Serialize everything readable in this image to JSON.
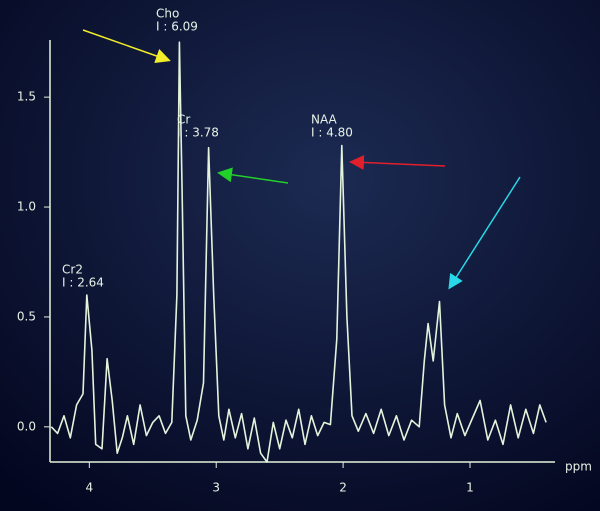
{
  "chart_data": {
    "type": "line",
    "x_label": "ppm",
    "annotations": [
      {
        "name": "Cho",
        "integral": "I : 6.09"
      },
      {
        "name": "Cr",
        "integral": "I : 3.78"
      },
      {
        "name": "NAA",
        "integral": "I : 4.80"
      },
      {
        "name": "Cr2",
        "integral": "I : 2.64"
      }
    ],
    "xlim": [
      4.31,
      0.33
    ],
    "xticks": [
      4,
      3,
      2,
      1
    ],
    "ylim": [
      -0.16,
      1.76
    ],
    "yticks": [
      {
        "value": 0,
        "label": "0.0"
      },
      0.5,
      {
        "value": 1,
        "label": "1.0"
      },
      1.5
    ],
    "series": [
      {
        "color": "#e4f4dc",
        "x": [
          4.3,
          4.25,
          4.2,
          4.15,
          4.1,
          4.05,
          4.02,
          3.98,
          3.95,
          3.9,
          3.86,
          3.82,
          3.78,
          3.74,
          3.7,
          3.65,
          3.6,
          3.55,
          3.5,
          3.45,
          3.4,
          3.35,
          3.31,
          3.29,
          3.27,
          3.24,
          3.2,
          3.15,
          3.1,
          3.06,
          3.02,
          2.98,
          2.94,
          2.9,
          2.85,
          2.8,
          2.75,
          2.7,
          2.65,
          2.6,
          2.55,
          2.5,
          2.45,
          2.4,
          2.35,
          2.3,
          2.25,
          2.2,
          2.15,
          2.1,
          2.05,
          2.01,
          1.97,
          1.93,
          1.88,
          1.82,
          1.76,
          1.7,
          1.64,
          1.58,
          1.52,
          1.46,
          1.4,
          1.36,
          1.33,
          1.29,
          1.24,
          1.2,
          1.15,
          1.1,
          1.04,
          0.98,
          0.92,
          0.86,
          0.8,
          0.74,
          0.68,
          0.62,
          0.56,
          0.5,
          0.45,
          0.4
        ],
        "values": [
          0.0,
          -0.03,
          0.05,
          -0.05,
          0.1,
          0.15,
          0.6,
          0.35,
          -0.08,
          -0.1,
          0.31,
          0.12,
          -0.12,
          -0.05,
          0.05,
          -0.08,
          0.1,
          -0.04,
          0.02,
          0.05,
          -0.03,
          0.02,
          0.6,
          1.75,
          1.1,
          0.05,
          -0.06,
          0.03,
          0.2,
          1.27,
          0.6,
          0.05,
          -0.06,
          0.08,
          -0.05,
          0.06,
          -0.1,
          0.04,
          -0.12,
          -0.16,
          0.02,
          -0.1,
          0.03,
          -0.05,
          0.08,
          -0.08,
          0.05,
          -0.04,
          0.02,
          0.01,
          0.4,
          1.28,
          0.5,
          0.05,
          -0.02,
          0.06,
          -0.03,
          0.08,
          -0.04,
          0.05,
          -0.06,
          0.03,
          0.0,
          0.3,
          0.47,
          0.3,
          0.57,
          0.1,
          -0.05,
          0.06,
          -0.04,
          0.04,
          0.12,
          -0.06,
          0.03,
          -0.08,
          0.1,
          -0.05,
          0.08,
          -0.03,
          0.1,
          0.02
        ]
      }
    ]
  }
}
